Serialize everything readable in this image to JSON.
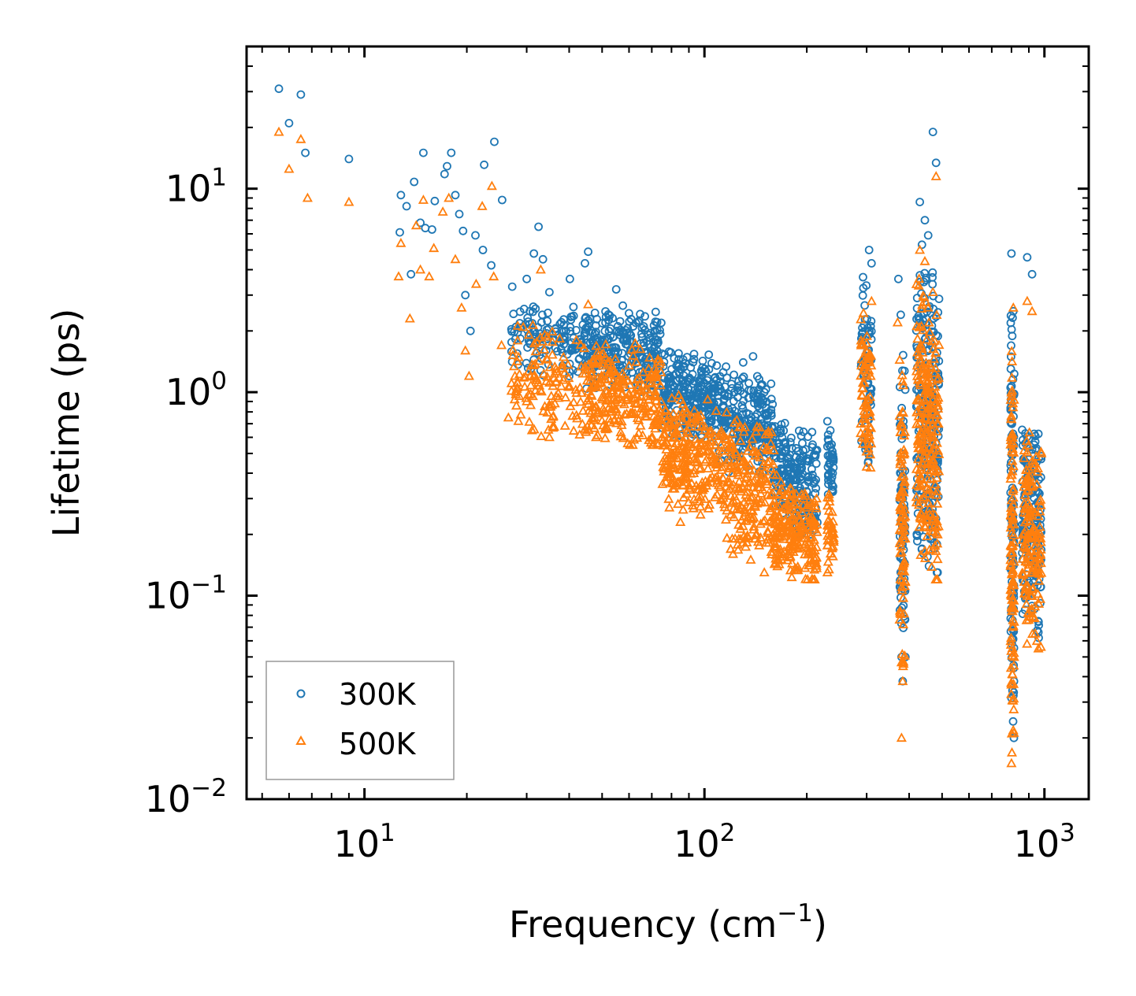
{
  "chart_data": {
    "type": "scatter",
    "xscale": "log",
    "yscale": "log",
    "xlabel": "Frequency (cm",
    "xlabel_sup": "−1",
    "xlabel_end": ")",
    "ylabel": "Lifetime (ps)",
    "xlim": [
      4.5,
      1350
    ],
    "ylim": [
      0.01,
      50
    ],
    "xticks": [
      {
        "value": 10,
        "base": "10",
        "exp": "1"
      },
      {
        "value": 100,
        "base": "10",
        "exp": "2"
      },
      {
        "value": 1000,
        "base": "10",
        "exp": "3"
      }
    ],
    "yticks": [
      {
        "value": 0.01,
        "base": "10",
        "exp": "−2"
      },
      {
        "value": 0.1,
        "base": "10",
        "exp": "−1"
      },
      {
        "value": 1,
        "base": "10",
        "exp": "0"
      },
      {
        "value": 10,
        "base": "10",
        "exp": "1"
      }
    ],
    "legend": {
      "placement": "lower-left"
    },
    "series": [
      {
        "name": "300K",
        "marker": "circle",
        "color": "#1f77b4",
        "points": [
          [
            5.6,
            31
          ],
          [
            6.0,
            21
          ],
          [
            6.5,
            29
          ],
          [
            6.7,
            15
          ],
          [
            9.0,
            14
          ],
          [
            12.7,
            6.1
          ],
          [
            12.8,
            9.3
          ],
          [
            13.3,
            8.2
          ],
          [
            13.7,
            3.8
          ],
          [
            14.0,
            10.8
          ],
          [
            14.6,
            6.8
          ],
          [
            14.9,
            15
          ],
          [
            15.1,
            6.4
          ],
          [
            15.8,
            6.3
          ],
          [
            16.1,
            8.7
          ],
          [
            17.2,
            11.8
          ],
          [
            17.5,
            12.9
          ],
          [
            18.0,
            15
          ],
          [
            18.5,
            9.3
          ],
          [
            19.0,
            7.5
          ],
          [
            19.5,
            6.2
          ],
          [
            19.8,
            3.0
          ],
          [
            20.5,
            2.0
          ],
          [
            21.2,
            5.9
          ],
          [
            22.3,
            5.0
          ],
          [
            22.5,
            13.1
          ],
          [
            23.6,
            4.2
          ],
          [
            24.1,
            17
          ],
          [
            25.4,
            8.8
          ],
          [
            27.2,
            3.3
          ],
          [
            30.0,
            3.6
          ],
          [
            31.5,
            4.8
          ],
          [
            32.5,
            6.5
          ],
          [
            33.5,
            4.5
          ],
          [
            35.0,
            3.1
          ],
          [
            40.2,
            3.6
          ],
          [
            44.5,
            4.3
          ],
          [
            45.5,
            4.9
          ],
          [
            55.0,
            3.2
          ],
          [
            85.0,
            1.3
          ],
          [
            130,
            1.4
          ],
          [
            139,
            1.5
          ],
          [
            150,
            1.0
          ],
          [
            210,
            0.21
          ],
          [
            230,
            0.72
          ],
          [
            305,
            5.0
          ],
          [
            310,
            4.3
          ],
          [
            372,
            3.6
          ],
          [
            378,
            2.4
          ],
          [
            380,
            0.05
          ],
          [
            383,
            0.038
          ],
          [
            430,
            8.6
          ],
          [
            445,
            7.0
          ],
          [
            455,
            5.9
          ],
          [
            470,
            19
          ],
          [
            480,
            13.4
          ],
          [
            800,
            4.8
          ],
          [
            805,
            0.49
          ],
          [
            810,
            2.5
          ],
          [
            890,
            4.6
          ],
          [
            920,
            3.8
          ],
          [
            960,
            0.28
          ]
        ]
      },
      {
        "name": "500K",
        "marker": "triangle",
        "color": "#ff7f0e",
        "points": [
          [
            5.6,
            19
          ],
          [
            6.0,
            12.5
          ],
          [
            6.5,
            17.5
          ],
          [
            6.8,
            9.0
          ],
          [
            9.0,
            8.6
          ],
          [
            12.6,
            3.7
          ],
          [
            12.8,
            5.4
          ],
          [
            13.6,
            2.3
          ],
          [
            14.2,
            6.6
          ],
          [
            14.6,
            4.0
          ],
          [
            14.9,
            8.8
          ],
          [
            15.5,
            3.7
          ],
          [
            16.0,
            5.1
          ],
          [
            17.0,
            7.7
          ],
          [
            17.7,
            9.0
          ],
          [
            18.5,
            4.5
          ],
          [
            19.3,
            2.6
          ],
          [
            19.8,
            1.6
          ],
          [
            20.3,
            1.2
          ],
          [
            21.3,
            3.4
          ],
          [
            22.2,
            8.2
          ],
          [
            23.7,
            10.3
          ],
          [
            24.0,
            3.7
          ],
          [
            25.3,
            1.7
          ],
          [
            26.5,
            0.75
          ],
          [
            30.0,
            0.9
          ],
          [
            33.0,
            4.0
          ],
          [
            35.0,
            0.6
          ],
          [
            45.5,
            2.7
          ],
          [
            48.0,
            0.6
          ],
          [
            55.0,
            0.8
          ],
          [
            85.0,
            0.23
          ],
          [
            150,
            0.13
          ],
          [
            210,
            0.12
          ],
          [
            230,
            0.13
          ],
          [
            300,
            0.43
          ],
          [
            310,
            2.8
          ],
          [
            370,
            2.2
          ],
          [
            380,
            0.047
          ],
          [
            383,
            0.038
          ],
          [
            380,
            0.02
          ],
          [
            430,
            5.0
          ],
          [
            445,
            4.4
          ],
          [
            470,
            3.1
          ],
          [
            480,
            11.5
          ],
          [
            800,
            0.015
          ],
          [
            810,
            2.6
          ],
          [
            890,
            2.8
          ],
          [
            920,
            2.5
          ],
          [
            960,
            0.055
          ]
        ]
      }
    ],
    "clusters": [
      {
        "series": "300K",
        "xmin": 27,
        "xmax": 45,
        "ymin": 1.2,
        "ymax": 3.2,
        "n": 140
      },
      {
        "series": "300K",
        "xmin": 45,
        "xmax": 75,
        "ymin": 1.0,
        "ymax": 2.9,
        "n": 260
      },
      {
        "series": "300K",
        "xmin": 75,
        "xmax": 110,
        "ymin": 0.6,
        "ymax": 1.8,
        "n": 240
      },
      {
        "series": "300K",
        "xmin": 110,
        "xmax": 160,
        "ymin": 0.4,
        "ymax": 1.4,
        "n": 240
      },
      {
        "series": "300K",
        "xmin": 160,
        "xmax": 215,
        "ymin": 0.2,
        "ymax": 0.8,
        "n": 220
      },
      {
        "series": "300K",
        "xmin": 230,
        "xmax": 240,
        "ymin": 0.3,
        "ymax": 0.72,
        "n": 40
      },
      {
        "series": "300K",
        "xmin": 288,
        "xmax": 310,
        "ymin": 0.45,
        "ymax": 4.5,
        "n": 70
      },
      {
        "series": "300K",
        "xmin": 375,
        "xmax": 390,
        "ymin": 0.05,
        "ymax": 2.4,
        "n": 90
      },
      {
        "series": "300K",
        "xmin": 420,
        "xmax": 490,
        "ymin": 0.13,
        "ymax": 8.0,
        "n": 240
      },
      {
        "series": "300K",
        "xmin": 795,
        "xmax": 815,
        "ymin": 0.02,
        "ymax": 4.5,
        "n": 110
      },
      {
        "series": "300K",
        "xmin": 860,
        "xmax": 980,
        "ymin": 0.06,
        "ymax": 1.2,
        "n": 160
      },
      {
        "series": "500K",
        "xmin": 27,
        "xmax": 45,
        "ymin": 0.6,
        "ymax": 2.3,
        "n": 140
      },
      {
        "series": "500K",
        "xmin": 45,
        "xmax": 75,
        "ymin": 0.55,
        "ymax": 2.0,
        "n": 260
      },
      {
        "series": "500K",
        "xmin": 75,
        "xmax": 110,
        "ymin": 0.25,
        "ymax": 1.1,
        "n": 240
      },
      {
        "series": "500K",
        "xmin": 110,
        "xmax": 160,
        "ymin": 0.15,
        "ymax": 0.9,
        "n": 240
      },
      {
        "series": "500K",
        "xmin": 160,
        "xmax": 215,
        "ymin": 0.12,
        "ymax": 0.4,
        "n": 220
      },
      {
        "series": "500K",
        "xmin": 230,
        "xmax": 240,
        "ymin": 0.13,
        "ymax": 0.35,
        "n": 40
      },
      {
        "series": "500K",
        "xmin": 288,
        "xmax": 310,
        "ymin": 0.42,
        "ymax": 2.8,
        "n": 70
      },
      {
        "series": "500K",
        "xmin": 375,
        "xmax": 390,
        "ymin": 0.045,
        "ymax": 2.0,
        "n": 90
      },
      {
        "series": "500K",
        "xmin": 420,
        "xmax": 490,
        "ymin": 0.12,
        "ymax": 5.0,
        "n": 240
      },
      {
        "series": "500K",
        "xmin": 795,
        "xmax": 815,
        "ymin": 0.015,
        "ymax": 2.6,
        "n": 110
      },
      {
        "series": "500K",
        "xmin": 860,
        "xmax": 980,
        "ymin": 0.055,
        "ymax": 0.9,
        "n": 160
      }
    ]
  }
}
